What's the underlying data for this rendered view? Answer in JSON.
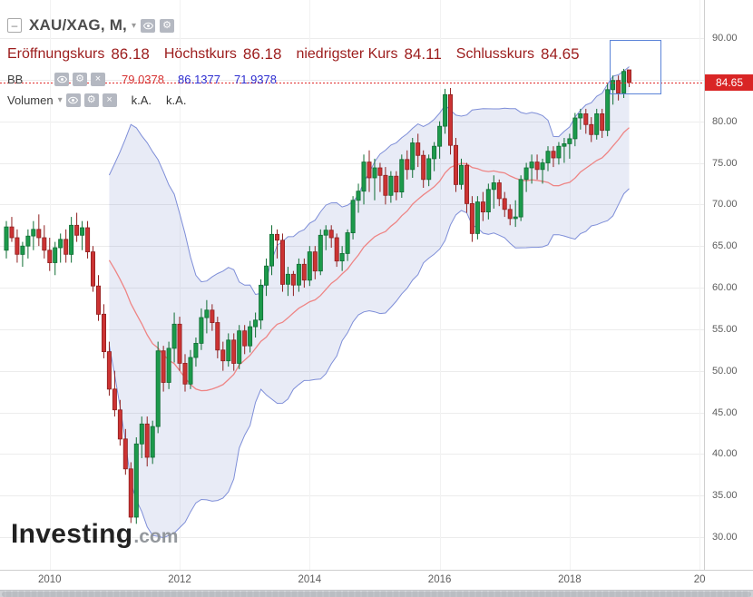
{
  "header": {
    "title": "XAU/XAG, M,",
    "ohlc": {
      "open_label": "Eröffnungskurs",
      "open_value": "86.18",
      "high_label": "Höchstkurs",
      "high_value": "86.18",
      "low_label": "niedrigster Kurs",
      "low_value": "84.11",
      "close_label": "Schlusskurs",
      "close_value": "84.65"
    },
    "indicators": {
      "bb_label": "BB",
      "bb_middle": "79.0378",
      "bb_upper": "86.1377",
      "bb_lower": "71.9378",
      "volume_label": "Volumen",
      "volume_value_1": "k.A.",
      "volume_value_2": "k.A."
    }
  },
  "icons": {
    "minus": "–",
    "caret": "▾",
    "gear": "⚙",
    "close": "×"
  },
  "watermark": {
    "name": "Investing",
    "tld": ".com"
  },
  "colors": {
    "up_candle": "#1c9a4b",
    "up_border": "#0e6d33",
    "down_candle": "#cc3333",
    "down_border": "#8f2020",
    "band_fill": "rgba(104,118,193,0.15)",
    "band_line": "#7e8ed8",
    "band_mid_line": "#ee8585",
    "last_price_line": "#e02b2b",
    "price_tag_bg": "#d92525",
    "ohlc_text": "#9c1c1c",
    "bb_mid_text": "#d63333",
    "bb_band_text": "#2d2dd0",
    "selection_border": "#5b84d8",
    "grid_line": "#ececec",
    "grid_line_vertical": "#f2f2f2"
  },
  "chart_data": {
    "type": "candlestick",
    "symbol": "XAU/XAG",
    "interval": "M",
    "start_month": "2009-05",
    "last_price": 84.65,
    "last_price_label": "84.65",
    "y_axis": {
      "min": 30,
      "max": 90,
      "step": 5,
      "tick_labels": [
        "90.00",
        "85.00",
        "80.00",
        "75.00",
        "70.00",
        "65.00",
        "60.00",
        "55.00",
        "50.00",
        "45.00",
        "40.00",
        "35.00",
        "30.00"
      ]
    },
    "x_ticks": [
      {
        "label": "2010",
        "month_index": 8
      },
      {
        "label": "2012",
        "month_index": 32
      },
      {
        "label": "2014",
        "month_index": 56
      },
      {
        "label": "2016",
        "month_index": 80
      },
      {
        "label": "2018",
        "month_index": 104
      },
      {
        "label": "20",
        "month_index": 128
      }
    ],
    "bollinger": {
      "period": 20,
      "stddev_mult": 2,
      "middle": 79.0378,
      "upper": 86.1377,
      "lower": 71.9378
    },
    "selection_box": {
      "start_index": 111.4,
      "end_index": 120.9,
      "price_top": 89.8,
      "price_bottom": 83.2
    },
    "candles": [
      [
        64.5,
        68.0,
        63.5,
        67.3
      ],
      [
        67.3,
        68.5,
        65.5,
        66.0
      ],
      [
        66.0,
        67.0,
        63.0,
        64.0
      ],
      [
        64.0,
        65.5,
        62.5,
        65.0
      ],
      [
        65.0,
        67.0,
        63.5,
        66.2
      ],
      [
        66.2,
        68.0,
        64.5,
        67.0
      ],
      [
        67.0,
        68.8,
        65.0,
        66.0
      ],
      [
        66.0,
        67.5,
        63.5,
        64.5
      ],
      [
        64.5,
        66.0,
        62.0,
        63.0
      ],
      [
        63.0,
        65.5,
        61.5,
        64.8
      ],
      [
        64.8,
        66.5,
        63.0,
        65.8
      ],
      [
        65.8,
        67.0,
        63.0,
        64.0
      ],
      [
        64.0,
        68.5,
        63.0,
        67.5
      ],
      [
        67.5,
        69.0,
        65.5,
        66.3
      ],
      [
        66.3,
        68.0,
        64.5,
        67.2
      ],
      [
        67.2,
        68.0,
        63.5,
        64.3
      ],
      [
        64.3,
        65.0,
        59.5,
        60.2
      ],
      [
        60.2,
        61.5,
        56.0,
        56.8
      ],
      [
        56.8,
        58.0,
        51.5,
        52.3
      ],
      [
        52.3,
        53.5,
        47.0,
        47.8
      ],
      [
        47.8,
        50.0,
        44.5,
        45.3
      ],
      [
        45.3,
        46.5,
        41.0,
        41.8
      ],
      [
        41.8,
        43.0,
        37.5,
        38.2
      ],
      [
        38.2,
        39.0,
        31.7,
        32.4
      ],
      [
        32.4,
        42.0,
        31.6,
        41.2
      ],
      [
        41.2,
        44.5,
        39.5,
        43.6
      ],
      [
        43.6,
        44.5,
        38.5,
        39.6
      ],
      [
        39.6,
        44.0,
        38.8,
        43.3
      ],
      [
        43.3,
        53.5,
        42.5,
        52.4
      ],
      [
        52.4,
        53.0,
        47.5,
        48.6
      ],
      [
        48.6,
        53.5,
        47.8,
        52.7
      ],
      [
        52.7,
        57.0,
        51.0,
        55.6
      ],
      [
        55.6,
        56.5,
        50.0,
        50.9
      ],
      [
        50.9,
        52.0,
        47.5,
        48.4
      ],
      [
        48.4,
        52.5,
        47.8,
        51.6
      ],
      [
        51.6,
        54.0,
        50.5,
        53.3
      ],
      [
        53.3,
        57.5,
        52.5,
        56.4
      ],
      [
        56.4,
        58.5,
        54.5,
        57.3
      ],
      [
        57.3,
        58.0,
        54.8,
        55.8
      ],
      [
        55.8,
        56.5,
        51.5,
        52.5
      ],
      [
        52.5,
        53.5,
        50.0,
        51.2
      ],
      [
        51.2,
        54.5,
        50.5,
        53.7
      ],
      [
        53.7,
        54.5,
        50.0,
        50.9
      ],
      [
        50.9,
        55.5,
        50.2,
        54.8
      ],
      [
        54.8,
        55.5,
        52.0,
        53.0
      ],
      [
        53.0,
        56.0,
        52.2,
        55.3
      ],
      [
        55.3,
        57.0,
        54.0,
        56.1
      ],
      [
        56.1,
        61.0,
        55.0,
        60.3
      ],
      [
        60.3,
        63.5,
        59.0,
        62.6
      ],
      [
        62.6,
        67.5,
        61.5,
        66.4
      ],
      [
        66.4,
        67.0,
        63.5,
        65.7
      ],
      [
        65.7,
        66.5,
        59.5,
        60.4
      ],
      [
        60.4,
        62.5,
        59.0,
        61.6
      ],
      [
        61.6,
        62.0,
        59.0,
        60.3
      ],
      [
        60.3,
        63.5,
        59.5,
        62.8
      ],
      [
        62.8,
        63.5,
        60.0,
        60.9
      ],
      [
        60.9,
        65.0,
        60.2,
        64.3
      ],
      [
        64.3,
        65.0,
        61.0,
        62.0
      ],
      [
        62.0,
        67.0,
        61.5,
        66.3
      ],
      [
        66.3,
        67.5,
        64.5,
        66.9
      ],
      [
        66.9,
        67.5,
        64.8,
        66.0
      ],
      [
        66.0,
        66.5,
        62.5,
        63.2
      ],
      [
        63.2,
        65.0,
        62.0,
        64.1
      ],
      [
        64.1,
        67.0,
        63.2,
        66.6
      ],
      [
        66.6,
        71.0,
        65.8,
        70.5
      ],
      [
        70.5,
        72.5,
        69.0,
        71.6
      ],
      [
        71.6,
        76.0,
        70.0,
        75.1
      ],
      [
        75.1,
        76.5,
        71.5,
        73.2
      ],
      [
        73.2,
        75.5,
        70.5,
        74.4
      ],
      [
        74.4,
        75.0,
        71.5,
        73.5
      ],
      [
        73.5,
        74.5,
        70.0,
        71.1
      ],
      [
        71.1,
        74.0,
        70.2,
        73.4
      ],
      [
        73.4,
        74.0,
        70.5,
        71.5
      ],
      [
        71.5,
        76.0,
        70.8,
        75.4
      ],
      [
        75.4,
        76.5,
        73.0,
        74.2
      ],
      [
        74.2,
        78.0,
        73.2,
        77.4
      ],
      [
        77.4,
        78.5,
        74.5,
        75.9
      ],
      [
        75.9,
        76.5,
        72.0,
        73.0
      ],
      [
        73.0,
        76.0,
        72.2,
        75.5
      ],
      [
        75.5,
        77.5,
        74.0,
        77.0
      ],
      [
        77.0,
        80.0,
        75.5,
        79.4
      ],
      [
        79.4,
        83.9,
        78.5,
        83.2
      ],
      [
        83.2,
        84.0,
        76.0,
        77.1
      ],
      [
        77.1,
        78.0,
        71.5,
        72.4
      ],
      [
        72.4,
        75.5,
        71.8,
        74.7
      ],
      [
        74.7,
        75.0,
        69.0,
        70.1
      ],
      [
        70.1,
        71.0,
        65.5,
        66.5
      ],
      [
        66.5,
        71.0,
        65.8,
        70.3
      ],
      [
        70.3,
        71.5,
        68.0,
        69.1
      ],
      [
        69.1,
        72.5,
        68.2,
        71.8
      ],
      [
        71.8,
        73.5,
        69.5,
        72.6
      ],
      [
        72.6,
        73.0,
        69.8,
        70.7
      ],
      [
        70.7,
        71.5,
        68.5,
        69.4
      ],
      [
        69.4,
        70.0,
        67.5,
        68.3
      ],
      [
        68.3,
        70.5,
        67.3,
        68.5
      ],
      [
        68.5,
        73.5,
        68.0,
        73.0
      ],
      [
        73.0,
        75.0,
        71.5,
        74.4
      ],
      [
        74.4,
        76.0,
        72.5,
        75.1
      ],
      [
        75.1,
        76.0,
        73.0,
        74.2
      ],
      [
        74.2,
        75.5,
        72.5,
        75.0
      ],
      [
        75.0,
        77.0,
        74.0,
        76.4
      ],
      [
        76.4,
        77.0,
        74.5,
        75.6
      ],
      [
        75.6,
        77.5,
        74.8,
        77.0
      ],
      [
        77.0,
        78.0,
        75.0,
        77.3
      ],
      [
        77.3,
        78.5,
        75.5,
        77.9
      ],
      [
        77.9,
        81.0,
        77.0,
        80.4
      ],
      [
        80.4,
        81.5,
        79.0,
        80.9
      ],
      [
        80.9,
        81.5,
        78.5,
        79.6
      ],
      [
        79.6,
        80.5,
        77.5,
        78.4
      ],
      [
        78.4,
        81.5,
        77.8,
        80.9
      ],
      [
        80.9,
        81.5,
        78.0,
        78.9
      ],
      [
        78.9,
        84.5,
        78.2,
        83.8
      ],
      [
        83.8,
        85.5,
        82.0,
        84.9
      ],
      [
        84.9,
        85.5,
        82.5,
        83.4
      ],
      [
        83.4,
        86.3,
        82.8,
        86.0
      ],
      [
        86.18,
        86.18,
        84.11,
        84.65
      ]
    ]
  }
}
